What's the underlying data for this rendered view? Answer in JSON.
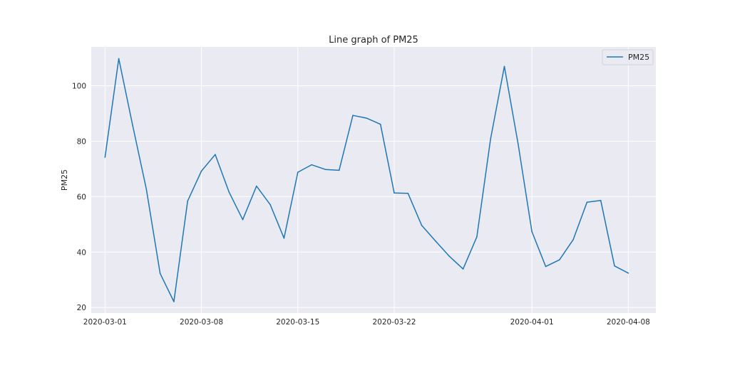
{
  "chart_data": {
    "type": "line",
    "title": "Line graph of PM25",
    "xlabel": "",
    "ylabel": "PM25",
    "legend": {
      "placement": "top-right",
      "entries": [
        "PM25"
      ]
    },
    "grid": true,
    "colors": {
      "series": "#1f77b4",
      "background": "#eaeaf2",
      "grid": "#ffffff"
    },
    "xlim": [
      "2020-02-29",
      "2020-04-10"
    ],
    "ylim": [
      18,
      114
    ],
    "x_ticks": [
      "2020-03-01",
      "2020-03-08",
      "2020-03-15",
      "2020-03-22",
      "2020-04-01",
      "2020-04-08"
    ],
    "y_ticks": [
      20,
      40,
      60,
      80,
      100
    ],
    "x": [
      "2020-03-01",
      "2020-03-02",
      "2020-03-03",
      "2020-03-04",
      "2020-03-05",
      "2020-03-06",
      "2020-03-07",
      "2020-03-08",
      "2020-03-09",
      "2020-03-10",
      "2020-03-11",
      "2020-03-12",
      "2020-03-13",
      "2020-03-14",
      "2020-03-15",
      "2020-03-16",
      "2020-03-17",
      "2020-03-18",
      "2020-03-19",
      "2020-03-20",
      "2020-03-21",
      "2020-03-22",
      "2020-03-23",
      "2020-03-24",
      "2020-03-25",
      "2020-03-26",
      "2020-03-27",
      "2020-03-28",
      "2020-03-29",
      "2020-03-30",
      "2020-03-31",
      "2020-04-01",
      "2020-04-02",
      "2020-04-03",
      "2020-04-04",
      "2020-04-05",
      "2020-04-06",
      "2020-04-07",
      "2020-04-08"
    ],
    "series": [
      {
        "name": "PM25",
        "values": [
          74.2,
          109.8,
          85.8,
          62.7,
          32.3,
          22.1,
          58.4,
          69.2,
          75.2,
          61.7,
          51.7,
          63.8,
          57.1,
          45.0,
          68.8,
          71.5,
          69.8,
          69.5,
          89.3,
          88.3,
          86.1,
          61.3,
          61.2,
          49.6,
          44.0,
          38.5,
          33.9,
          45.5,
          80.9,
          107.0,
          79.0,
          47.4,
          34.8,
          37.2,
          44.5,
          58.0,
          58.6,
          35.0,
          32.4
        ]
      }
    ]
  }
}
